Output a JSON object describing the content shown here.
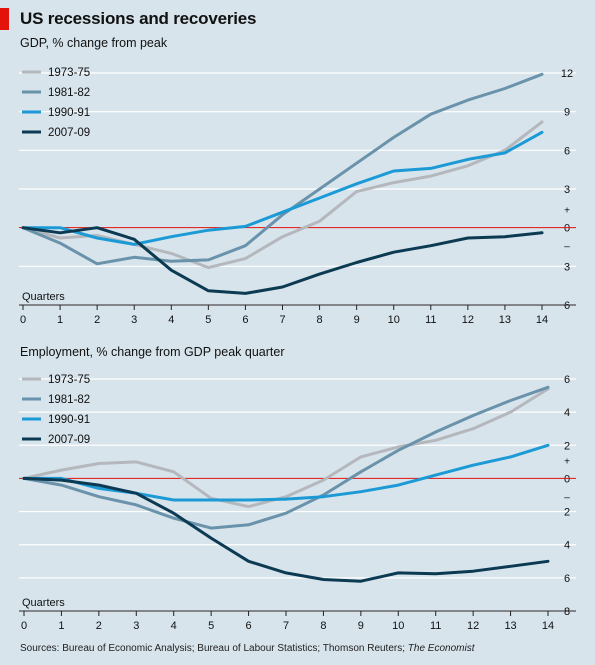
{
  "title": "US recessions and recoveries",
  "source_text": "Sources: Bureau of Economic Analysis; Bureau of Labour Statistics; Thomson Reuters; ",
  "source_italic": "The Economist",
  "colors": {
    "background": "#d7e4ec",
    "gridline": "#ffffff",
    "zero_line": "#e3120b",
    "accent_tab": "#e3120b"
  },
  "chart_data": [
    {
      "type": "line",
      "title": "GDP, % change from peak",
      "xlabel": "Quarters",
      "x": [
        0,
        1,
        2,
        3,
        4,
        5,
        6,
        7,
        8,
        9,
        10,
        11,
        12,
        13,
        14
      ],
      "xlim": [
        0,
        14
      ],
      "ylim": [
        -6,
        12
      ],
      "y_ticks": [
        {
          "value": 12,
          "label": "12"
        },
        {
          "value": 9,
          "label": "9"
        },
        {
          "value": 6,
          "label": "6"
        },
        {
          "value": 3,
          "label": "3"
        },
        {
          "value": 0,
          "label": "0"
        },
        {
          "value": -3,
          "label": "3"
        },
        {
          "value": -6,
          "label": "6"
        }
      ],
      "sign_labels": {
        "plus": "+",
        "minus": "–"
      },
      "legend_position": "top-left",
      "series": [
        {
          "name": "1973-75",
          "color": "#b4b8bc",
          "values": [
            0,
            -0.8,
            -0.6,
            -1.3,
            -2,
            -3.1,
            -2.4,
            -0.7,
            0.5,
            2.8,
            3.5,
            4,
            4.8,
            6,
            8.2
          ]
        },
        {
          "name": "1981-82",
          "color": "#6a93ab",
          "values": [
            0,
            -1.2,
            -2.8,
            -2.3,
            -2.6,
            -2.5,
            -1.4,
            1.0,
            3.0,
            5.0,
            7.0,
            8.8,
            9.9,
            10.8,
            11.9
          ]
        },
        {
          "name": "1990-91",
          "color": "#1c9ad6",
          "values": [
            0,
            0,
            -0.8,
            -1.3,
            -0.7,
            -0.2,
            0.1,
            1.2,
            2.3,
            3.4,
            4.4,
            4.6,
            5.3,
            5.8,
            7.4
          ]
        },
        {
          "name": "2007-09",
          "color": "#0b3a52",
          "values": [
            0,
            -0.4,
            0,
            -0.9,
            -3.3,
            -4.9,
            -5.1,
            -4.6,
            -3.6,
            -2.7,
            -1.9,
            -1.4,
            -0.8,
            -0.7,
            -0.4
          ]
        }
      ]
    },
    {
      "type": "line",
      "title": "Employment, % change from GDP peak quarter",
      "xlabel": "Quarters",
      "x": [
        0,
        1,
        2,
        3,
        4,
        5,
        6,
        7,
        8,
        9,
        10,
        11,
        12,
        13,
        14
      ],
      "xlim": [
        0,
        14
      ],
      "ylim": [
        -8,
        6
      ],
      "y_ticks": [
        {
          "value": 6,
          "label": "6"
        },
        {
          "value": 4,
          "label": "4"
        },
        {
          "value": 2,
          "label": "2"
        },
        {
          "value": 0,
          "label": "0"
        },
        {
          "value": -2,
          "label": "2"
        },
        {
          "value": -4,
          "label": "4"
        },
        {
          "value": -6,
          "label": "6"
        },
        {
          "value": -8,
          "label": "8"
        }
      ],
      "sign_labels": {
        "plus": "+",
        "minus": "–"
      },
      "legend_position": "top-left",
      "series": [
        {
          "name": "1973-75",
          "color": "#b4b8bc",
          "values": [
            0,
            0.5,
            0.9,
            1.0,
            0.4,
            -1.2,
            -1.7,
            -1.1,
            -0.1,
            1.3,
            1.9,
            2.3,
            3.0,
            4.0,
            5.4
          ]
        },
        {
          "name": "1981-82",
          "color": "#6a93ab",
          "values": [
            0,
            -0.4,
            -1.1,
            -1.6,
            -2.4,
            -3.0,
            -2.8,
            -2.1,
            -1.0,
            0.4,
            1.7,
            2.8,
            3.8,
            4.7,
            5.5
          ]
        },
        {
          "name": "1990-91",
          "color": "#1c9ad6",
          "values": [
            0,
            0,
            -0.6,
            -0.9,
            -1.3,
            -1.3,
            -1.3,
            -1.25,
            -1.1,
            -0.8,
            -0.4,
            0.2,
            0.8,
            1.3,
            2.0
          ]
        },
        {
          "name": "2007-09",
          "color": "#0b3a52",
          "values": [
            0,
            -0.1,
            -0.4,
            -0.9,
            -2.1,
            -3.6,
            -5.0,
            -5.7,
            -6.1,
            -6.2,
            -5.7,
            -5.75,
            -5.6,
            -5.3,
            -5.0
          ]
        }
      ]
    }
  ]
}
